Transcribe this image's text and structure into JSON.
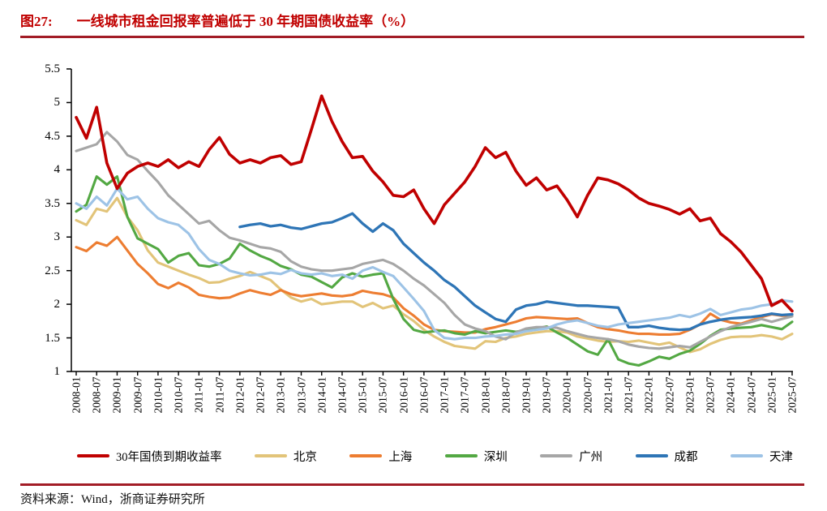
{
  "header": {
    "fig_label": "图27:",
    "title": "一线城市租金回报率普遍低于 30 年期国债收益率（%）"
  },
  "footer": {
    "source": "资料来源：Wind，浙商证券研究所"
  },
  "colors": {
    "title_red": "#c00000",
    "rule_red": "#a21c26",
    "axis_black": "#000000"
  },
  "chart_data": {
    "type": "line",
    "title": "一线城市租金回报率普遍低于 30 年期国债收益率（%）",
    "xlabel": "",
    "ylabel": "",
    "ylim": [
      1,
      5.5
    ],
    "grid": false,
    "legend_position": "bottom",
    "y_ticks": [
      5.5,
      5,
      4.5,
      4,
      3.5,
      3,
      2.5,
      2,
      1.5,
      1
    ],
    "x_tick_labels": [
      "2008-01",
      "2008-07",
      "2009-01",
      "2009-07",
      "2010-01",
      "2010-07",
      "2011-01",
      "2011-07",
      "2012-01",
      "2012-07",
      "2013-01",
      "2013-07",
      "2014-01",
      "2014-07",
      "2015-01",
      "2015-07",
      "2016-01",
      "2016-07",
      "2017-01",
      "2017-07",
      "2018-01",
      "2018-07",
      "2019-01",
      "2019-07",
      "2020-01",
      "2020-07",
      "2021-01",
      "2021-07",
      "2022-01",
      "2022-07",
      "2023-01",
      "2023-07",
      "2024-01",
      "2024-07",
      "2025-01",
      "2025-07"
    ],
    "series_x": {
      "start": "2008-01",
      "step_months": 3,
      "end": "2025-07"
    },
    "series": [
      {
        "name": "30年国债到期收益率",
        "color": "#c00000",
        "width": 3.6,
        "values": [
          4.78,
          4.47,
          4.93,
          4.1,
          3.72,
          3.95,
          4.05,
          4.1,
          4.05,
          4.15,
          4.03,
          4.12,
          4.05,
          4.3,
          4.48,
          4.23,
          4.1,
          4.15,
          4.1,
          4.18,
          4.21,
          4.08,
          4.12,
          4.6,
          5.1,
          4.72,
          4.42,
          4.18,
          4.2,
          3.98,
          3.82,
          3.62,
          3.6,
          3.7,
          3.42,
          3.2,
          3.48,
          3.65,
          3.82,
          4.05,
          4.33,
          4.18,
          4.26,
          3.98,
          3.77,
          3.88,
          3.7,
          3.76,
          3.55,
          3.3,
          3.62,
          3.88,
          3.85,
          3.79,
          3.7,
          3.58,
          3.5,
          3.46,
          3.41,
          3.34,
          3.42,
          3.24,
          3.28,
          3.05,
          2.93,
          2.78,
          2.58,
          2.38,
          1.98,
          2.06,
          1.9
        ]
      },
      {
        "name": "北京",
        "color": "#e2c479",
        "width": 3.1,
        "values": [
          3.25,
          3.18,
          3.42,
          3.38,
          3.58,
          3.3,
          3.1,
          2.8,
          2.62,
          2.56,
          2.5,
          2.44,
          2.39,
          2.32,
          2.33,
          2.38,
          2.42,
          2.48,
          2.42,
          2.36,
          2.22,
          2.1,
          2.04,
          2.08,
          2.0,
          2.02,
          2.04,
          2.04,
          1.96,
          2.02,
          1.94,
          1.98,
          1.85,
          1.75,
          1.62,
          1.52,
          1.44,
          1.38,
          1.36,
          1.34,
          1.45,
          1.44,
          1.5,
          1.52,
          1.56,
          1.58,
          1.6,
          1.6,
          1.58,
          1.52,
          1.49,
          1.46,
          1.44,
          1.45,
          1.44,
          1.46,
          1.43,
          1.4,
          1.43,
          1.36,
          1.29,
          1.33,
          1.41,
          1.47,
          1.51,
          1.52,
          1.52,
          1.54,
          1.52,
          1.48,
          1.56
        ]
      },
      {
        "name": "上海",
        "color": "#ed7d31",
        "width": 3.1,
        "values": [
          2.85,
          2.79,
          2.92,
          2.87,
          3.0,
          2.8,
          2.6,
          2.46,
          2.3,
          2.24,
          2.32,
          2.25,
          2.14,
          2.11,
          2.09,
          2.1,
          2.16,
          2.21,
          2.17,
          2.14,
          2.21,
          2.15,
          2.12,
          2.14,
          2.16,
          2.13,
          2.12,
          2.14,
          2.2,
          2.17,
          2.15,
          2.1,
          1.94,
          1.83,
          1.7,
          1.62,
          1.6,
          1.59,
          1.58,
          1.58,
          1.63,
          1.66,
          1.7,
          1.74,
          1.79,
          1.81,
          1.8,
          1.79,
          1.78,
          1.79,
          1.72,
          1.66,
          1.63,
          1.61,
          1.58,
          1.56,
          1.56,
          1.55,
          1.55,
          1.56,
          1.62,
          1.7,
          1.86,
          1.77,
          1.73,
          1.71,
          1.76,
          1.81,
          1.85,
          1.83,
          1.83
        ]
      },
      {
        "name": "深圳",
        "color": "#53a843",
        "width": 3.1,
        "values": [
          3.38,
          3.48,
          3.9,
          3.78,
          3.9,
          3.3,
          2.98,
          2.9,
          2.82,
          2.62,
          2.72,
          2.76,
          2.58,
          2.56,
          2.6,
          2.68,
          2.9,
          2.8,
          2.72,
          2.66,
          2.57,
          2.52,
          2.44,
          2.41,
          2.33,
          2.25,
          2.4,
          2.46,
          2.41,
          2.44,
          2.46,
          2.08,
          1.78,
          1.62,
          1.58,
          1.6,
          1.61,
          1.57,
          1.55,
          1.6,
          1.57,
          1.59,
          1.61,
          1.59,
          1.62,
          1.64,
          1.67,
          1.58,
          1.5,
          1.4,
          1.3,
          1.25,
          1.48,
          1.18,
          1.12,
          1.09,
          1.15,
          1.22,
          1.19,
          1.26,
          1.31,
          1.41,
          1.53,
          1.62,
          1.64,
          1.65,
          1.66,
          1.69,
          1.66,
          1.63,
          1.74
        ]
      },
      {
        "name": "广州",
        "color": "#a6a6a6",
        "width": 3.1,
        "values": [
          4.28,
          4.33,
          4.38,
          4.56,
          4.42,
          4.22,
          4.15,
          3.98,
          3.82,
          3.62,
          3.48,
          3.34,
          3.2,
          3.24,
          3.1,
          2.99,
          2.95,
          2.9,
          2.85,
          2.83,
          2.78,
          2.64,
          2.56,
          2.52,
          2.5,
          2.5,
          2.52,
          2.54,
          2.6,
          2.63,
          2.66,
          2.6,
          2.5,
          2.38,
          2.28,
          2.15,
          2.02,
          1.84,
          1.7,
          1.64,
          1.6,
          1.52,
          1.48,
          1.58,
          1.64,
          1.66,
          1.66,
          1.65,
          1.6,
          1.56,
          1.52,
          1.5,
          1.48,
          1.45,
          1.4,
          1.37,
          1.35,
          1.34,
          1.36,
          1.38,
          1.36,
          1.44,
          1.52,
          1.6,
          1.66,
          1.7,
          1.74,
          1.78,
          1.74,
          1.78,
          1.82
        ]
      },
      {
        "name": "成都",
        "color": "#2e75b6",
        "width": 3.3,
        "values": [
          null,
          null,
          null,
          null,
          null,
          null,
          null,
          null,
          null,
          null,
          null,
          null,
          null,
          null,
          null,
          null,
          3.15,
          3.18,
          3.2,
          3.16,
          3.18,
          3.14,
          3.12,
          3.16,
          3.2,
          3.22,
          3.28,
          3.35,
          3.2,
          3.08,
          3.2,
          3.1,
          2.9,
          2.76,
          2.62,
          2.5,
          2.36,
          2.26,
          2.12,
          1.98,
          1.88,
          1.78,
          1.74,
          1.92,
          1.98,
          2.0,
          2.04,
          2.02,
          2.0,
          1.98,
          1.98,
          1.97,
          1.96,
          1.95,
          1.66,
          1.66,
          1.68,
          1.65,
          1.63,
          1.62,
          1.63,
          1.7,
          1.74,
          1.77,
          1.79,
          1.8,
          1.81,
          1.83,
          1.86,
          1.84,
          1.85
        ]
      },
      {
        "name": "天津",
        "color": "#9dc3e6",
        "width": 3.1,
        "values": [
          3.5,
          3.42,
          3.6,
          3.47,
          3.72,
          3.56,
          3.6,
          3.42,
          3.28,
          3.22,
          3.18,
          3.05,
          2.82,
          2.66,
          2.6,
          2.5,
          2.46,
          2.43,
          2.44,
          2.47,
          2.45,
          2.51,
          2.46,
          2.44,
          2.46,
          2.42,
          2.44,
          2.38,
          2.5,
          2.55,
          2.48,
          2.42,
          2.25,
          2.08,
          1.9,
          1.62,
          1.5,
          1.48,
          1.5,
          1.5,
          1.52,
          1.53,
          1.55,
          1.56,
          1.6,
          1.62,
          1.64,
          1.7,
          1.74,
          1.76,
          1.72,
          1.68,
          1.66,
          1.7,
          1.72,
          1.74,
          1.76,
          1.78,
          1.8,
          1.84,
          1.81,
          1.86,
          1.93,
          1.84,
          1.88,
          1.92,
          1.94,
          1.98,
          2.0,
          2.06,
          2.04
        ]
      }
    ]
  }
}
